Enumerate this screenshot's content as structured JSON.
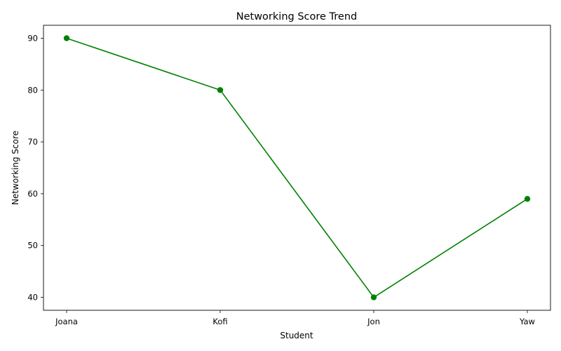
{
  "chart_data": {
    "type": "line",
    "title": "Networking Score Trend",
    "xlabel": "Student",
    "ylabel": "Networking Score",
    "categories": [
      "Joana",
      "Kofi",
      "Jon",
      "Yaw"
    ],
    "series": [
      {
        "values": [
          90,
          80,
          40,
          59
        ],
        "color": "#008000",
        "marker": "circle"
      }
    ],
    "yticks": [
      40,
      50,
      60,
      70,
      80,
      90
    ],
    "ylim": [
      37.5,
      92.5
    ],
    "grid": false,
    "legend": "none"
  }
}
